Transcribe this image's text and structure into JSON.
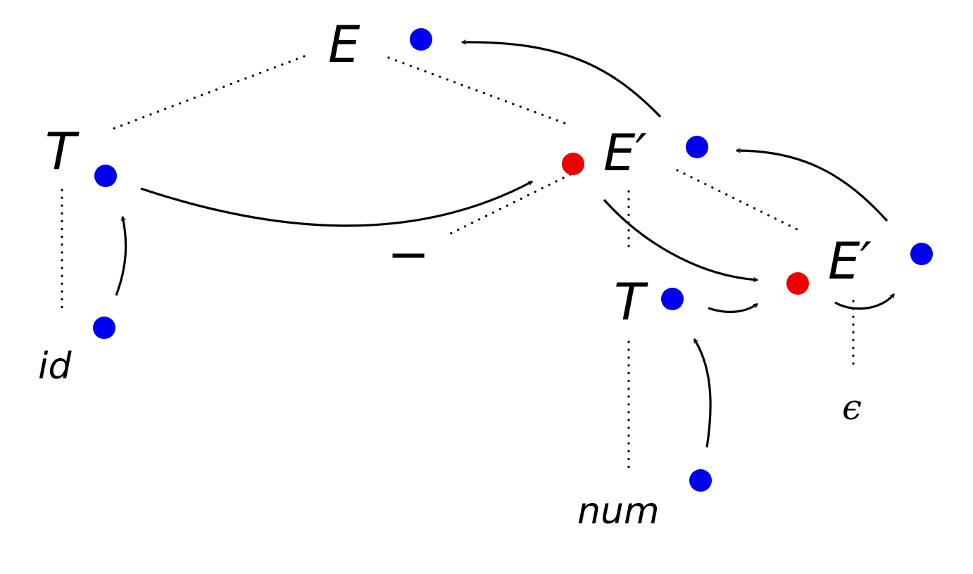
{
  "nodes": {
    "E_root": {
      "label": "E"
    },
    "T_left": {
      "label": "T"
    },
    "id_leaf": {
      "label": "id"
    },
    "minus": {
      "label": "−"
    },
    "Eprime_mid": {
      "label": "E′"
    },
    "T_right": {
      "label": "T"
    },
    "num_leaf": {
      "label": "num"
    },
    "Eprime_right": {
      "label": "E′"
    },
    "epsilon": {
      "label": "ϵ"
    }
  },
  "colors": {
    "synthesized": "#0000ee",
    "inherited": "#ee0000",
    "edge": "#000000"
  }
}
